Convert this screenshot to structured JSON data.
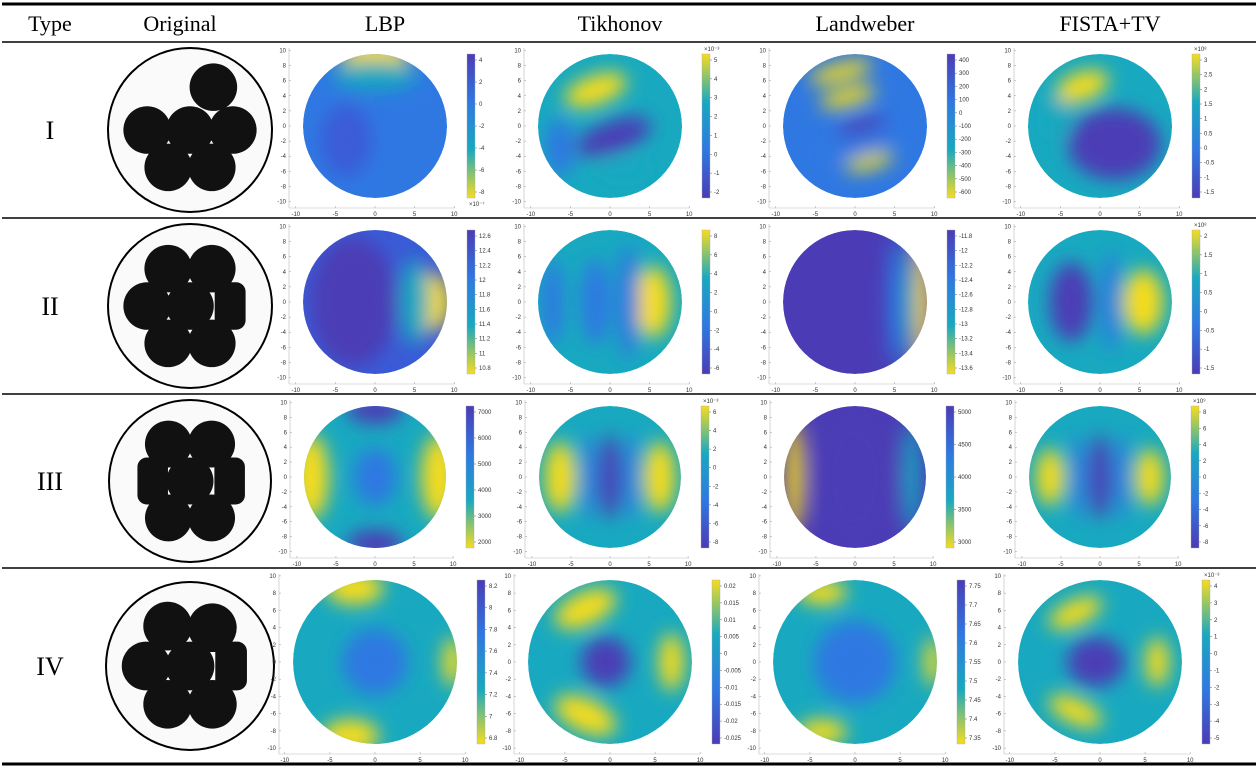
{
  "header": [
    "Type",
    "Original",
    "LBP",
    "Tikhonov",
    "Landweber",
    "FISTA+TV"
  ],
  "axis": {
    "xticks": [
      -10,
      -5,
      0,
      5,
      10
    ],
    "yticks": [
      10,
      8,
      6,
      4,
      2,
      0,
      -2,
      -4,
      -6,
      -8,
      -10
    ]
  },
  "rows": [
    {
      "type": "I",
      "plots": [
        {
          "cbar_ticks": [
            4,
            2,
            0,
            -2,
            -4,
            -6,
            -8
          ],
          "exponent": "×10⁻⁷"
        },
        {
          "cbar_ticks": [
            5,
            4,
            3,
            2,
            1,
            0,
            -1,
            -2
          ],
          "exponent": "×10⁻³"
        },
        {
          "cbar_ticks": [
            400,
            300,
            200,
            100,
            0,
            -100,
            -200,
            -300,
            -400,
            -500,
            -600
          ]
        },
        {
          "cbar_ticks": [
            3,
            2.5,
            2,
            1.5,
            1,
            0.5,
            0,
            -0.5,
            -1,
            -1.5
          ],
          "exponent": "×10⁸"
        }
      ]
    },
    {
      "type": "II",
      "plots": [
        {
          "cbar_ticks": [
            12.6,
            12.4,
            12.2,
            12,
            11.8,
            11.6,
            11.4,
            11.2,
            11,
            10.8
          ]
        },
        {
          "cbar_ticks": [
            8,
            6,
            4,
            2,
            0,
            -2,
            -4,
            -6
          ]
        },
        {
          "cbar_ticks": [
            -11.8,
            -12,
            -12.2,
            -12.4,
            -12.6,
            -12.8,
            -13,
            -13.2,
            -13.4,
            -13.6
          ]
        },
        {
          "cbar_ticks": [
            2,
            1.5,
            1,
            0.5,
            0,
            -0.5,
            -1,
            -1.5
          ],
          "exponent": "×10⁸"
        }
      ]
    },
    {
      "type": "III",
      "plots": [
        {
          "cbar_ticks": [
            7000,
            6000,
            5000,
            4000,
            3000,
            2000
          ]
        },
        {
          "cbar_ticks": [
            6,
            4,
            2,
            0,
            -2,
            -4,
            -6,
            -8
          ],
          "exponent": "×10⁻³"
        },
        {
          "cbar_ticks": [
            5000,
            4500,
            4000,
            3500,
            3000
          ]
        },
        {
          "cbar_ticks": [
            8,
            6,
            4,
            2,
            0,
            -2,
            -4,
            -6,
            -8
          ],
          "exponent": "×10⁹"
        }
      ]
    },
    {
      "type": "IV",
      "plots": [
        {
          "cbar_ticks": [
            8.2,
            8,
            7.8,
            7.6,
            7.4,
            7.2,
            7,
            6.8
          ]
        },
        {
          "cbar_ticks": [
            0.02,
            0.015,
            0.01,
            0.005,
            0,
            -0.005,
            -0.01,
            -0.015,
            -0.02,
            -0.025
          ]
        },
        {
          "cbar_ticks": [
            7.75,
            7.7,
            7.65,
            7.6,
            7.55,
            7.5,
            7.45,
            7.4,
            7.35
          ]
        },
        {
          "cbar_ticks": [
            4,
            3,
            2,
            1,
            0,
            -1,
            -2,
            -3,
            -4,
            -5
          ],
          "exponent": "×10⁻³"
        }
      ]
    }
  ]
}
